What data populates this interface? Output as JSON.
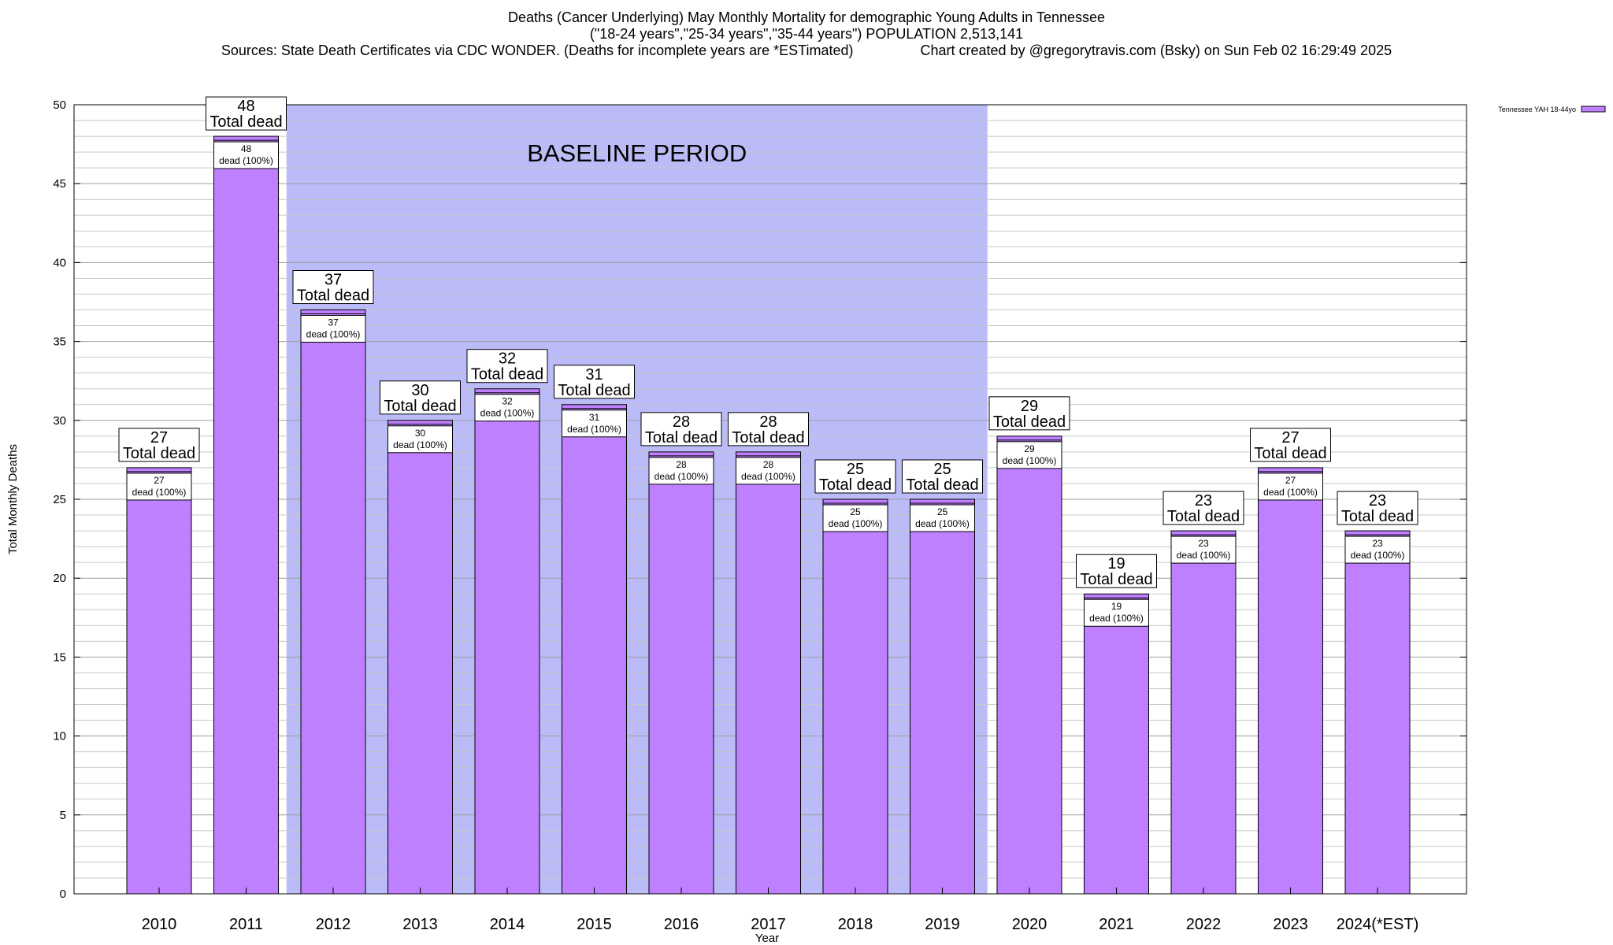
{
  "header": {
    "title_line1": "Deaths (Cancer Underlying) May Monthly Mortality for demographic Young Adults in Tennessee",
    "title_line2": "(\"18-24 years\",\"25-34 years\",\"35-44 years\") POPULATION 2,513,141",
    "title_line3": "Sources: State Death Certificates via CDC WONDER. (Deaths for incomplete years are *ESTimated)                 Chart created by @gregorytravis.com (Bsky) on Sun Feb 02 16:29:49 2025"
  },
  "chart_data": {
    "type": "bar",
    "title": "Deaths (Cancer Underlying) May Monthly Mortality for demographic Young Adults in Tennessee",
    "xlabel": "Year",
    "ylabel": "Total Monthly Deaths",
    "ylim": [
      0,
      50
    ],
    "y_ticks": [
      0,
      5,
      10,
      15,
      20,
      25,
      30,
      35,
      40,
      45,
      50
    ],
    "minor_grid_step": 1,
    "grid": true,
    "legend_position": "top-right",
    "categories": [
      "2010",
      "2011",
      "2012",
      "2013",
      "2014",
      "2015",
      "2016",
      "2017",
      "2018",
      "2019",
      "2020",
      "2021",
      "2022",
      "2023",
      "2024(*EST)"
    ],
    "series": [
      {
        "name": "Tennessee YAH 18-44yo",
        "color": "#bf80ff",
        "values": [
          27,
          48,
          37,
          30,
          32,
          31,
          28,
          28,
          25,
          25,
          29,
          19,
          23,
          27,
          23
        ]
      }
    ],
    "top_label_text": "Total dead",
    "inner_label_text": "dead (100%)",
    "baseline_region": {
      "label": "BASELINE PERIOD",
      "from_category": "2012",
      "to_category": "2019",
      "color": "#bbbbf8"
    }
  }
}
